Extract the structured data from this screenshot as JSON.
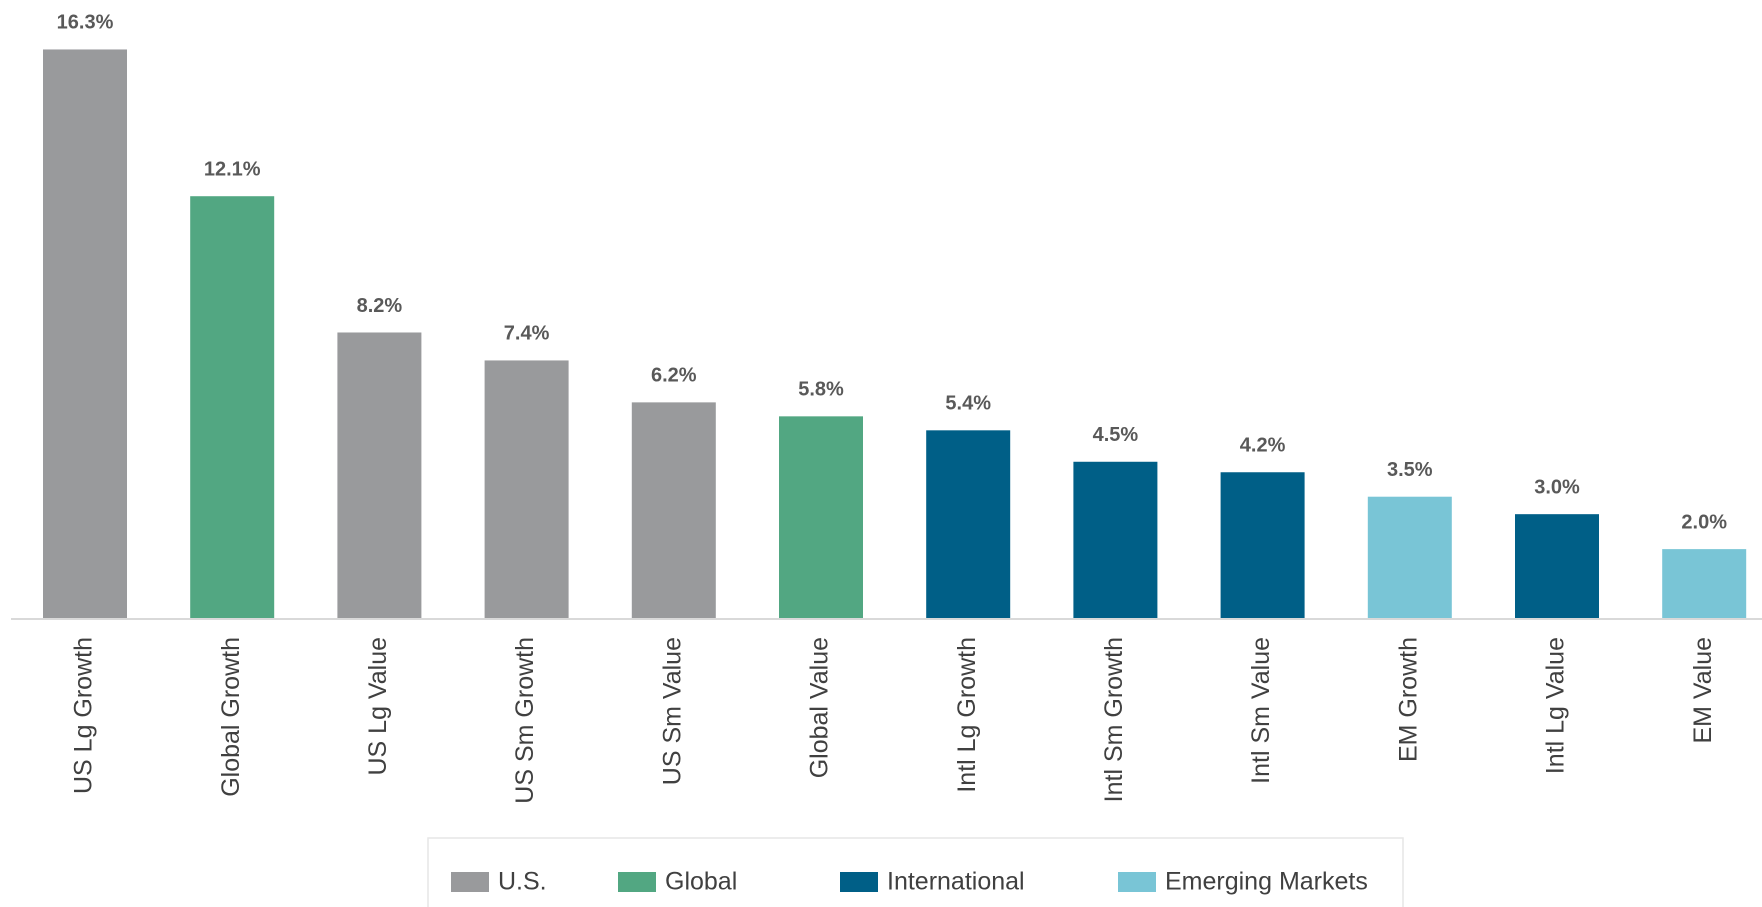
{
  "chart_data": {
    "type": "bar",
    "categories": [
      "US Lg Growth",
      "Global Growth",
      "US Lg Value",
      "US Sm Growth",
      "US Sm Value",
      "Global Value",
      "Intl Lg Growth",
      "Intl Sm Growth",
      "Intl Sm Value",
      "EM Growth",
      "Intl Lg Value",
      "EM Value"
    ],
    "series": [
      {
        "name": "U.S.",
        "color": "#999a9c",
        "values": [
          16.3,
          null,
          8.2,
          7.4,
          6.2,
          null,
          null,
          null,
          null,
          null,
          null,
          null
        ],
        "value_labels": [
          "16.3%",
          null,
          "8.2%",
          "7.4%",
          "6.2%",
          null,
          null,
          null,
          null,
          null,
          null,
          null
        ]
      },
      {
        "name": "Global",
        "color": "#52a782",
        "values": [
          null,
          12.1,
          null,
          null,
          null,
          5.8,
          null,
          null,
          null,
          null,
          null,
          null
        ],
        "value_labels": [
          null,
          "12.1%",
          null,
          null,
          null,
          "5.8%",
          null,
          null,
          null,
          null,
          null,
          null
        ]
      },
      {
        "name": "International",
        "color": "#005f87",
        "values": [
          null,
          null,
          null,
          null,
          null,
          null,
          5.4,
          4.5,
          4.2,
          null,
          3.0,
          null
        ],
        "value_labels": [
          null,
          null,
          null,
          null,
          null,
          null,
          "5.4%",
          "4.5%",
          "4.2%",
          null,
          "3.0%",
          null
        ]
      },
      {
        "name": "Emerging Markets",
        "color": "#79c5d6",
        "values": [
          null,
          null,
          null,
          null,
          null,
          null,
          null,
          null,
          null,
          3.5,
          null,
          2.0
        ],
        "value_labels": [
          null,
          null,
          null,
          null,
          null,
          null,
          null,
          null,
          null,
          "3.5%",
          null,
          "2.0%"
        ]
      }
    ],
    "ylim": [
      0,
      17
    ],
    "legend": "bottom"
  }
}
